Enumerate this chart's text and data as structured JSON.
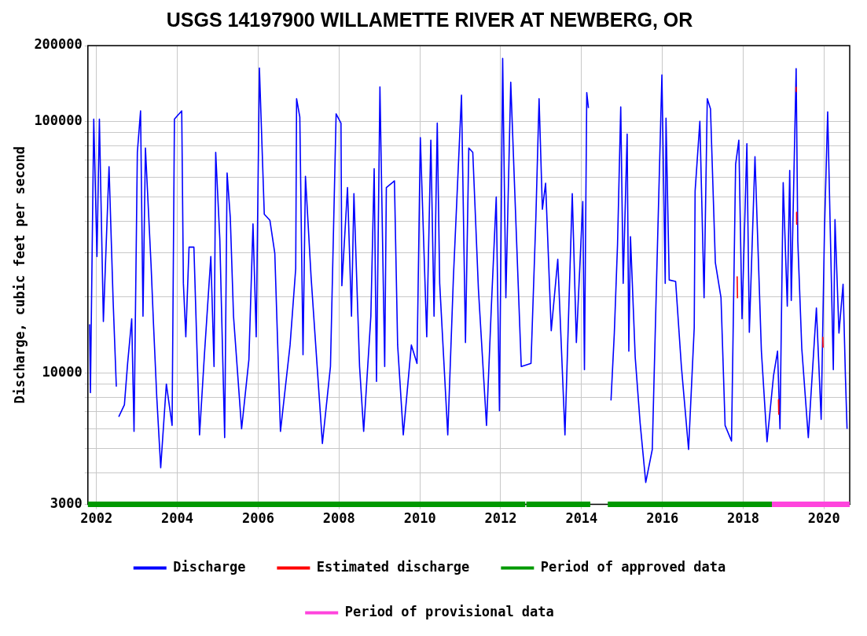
{
  "chart_data": {
    "type": "line",
    "title": "USGS 14197900 WILLAMETTE RIVER AT NEWBERG, OR",
    "ylabel": "Discharge, cubic feet per second",
    "xlim": [
      "2001-10-15",
      "2020-08-20"
    ],
    "xticks": [
      "2002",
      "2004",
      "2006",
      "2008",
      "2010",
      "2012",
      "2014",
      "2016",
      "2018",
      "2020"
    ],
    "ylim": [
      3000,
      200000
    ],
    "yticks": [
      3000,
      {
        "value": 4000,
        "label": null
      },
      {
        "value": 5000,
        "label": null
      },
      {
        "value": 6000,
        "label": null
      },
      {
        "value": 7000,
        "label": null
      },
      {
        "value": 8000,
        "label": null
      },
      {
        "value": 9000,
        "label": null
      },
      10000,
      {
        "value": 20000,
        "label": null
      },
      {
        "value": 30000,
        "label": null
      },
      {
        "value": 40000,
        "label": null
      },
      {
        "value": 50000,
        "label": null
      },
      {
        "value": 60000,
        "label": null
      },
      {
        "value": 70000,
        "label": null
      },
      {
        "value": 80000,
        "label": null
      },
      {
        "value": 90000,
        "label": null
      },
      100000,
      200000
    ],
    "log": "y",
    "grid": true,
    "legend": "bottom",
    "series": [
      {
        "name": "Discharge",
        "color": "#0000ff",
        "x": [
          "2001-10-31",
          "2001-11-07",
          "2001-12-07",
          "2002-01-05",
          "2002-01-27",
          "2002-03-04",
          "2002-04-24",
          "2002-05-31",
          "2002-06-29",
          "2002-07-15",
          "2002-07-21",
          "2002-09-10",
          "2002-10-09",
          "2002-11-15",
          "2002-12-06",
          "2003-01-05",
          "2003-02-03",
          "2003-02-25",
          "2003-03-19",
          "2003-05-09",
          "2003-05-31",
          "2003-06-29",
          "2003-08-04",
          "2003-09-24",
          "2003-11-15",
          "2003-12-06",
          "2004-02-10",
          "2004-02-25",
          "2004-03-18",
          "2004-04-16",
          "2004-05-30",
          "2004-07-20",
          "2004-09-02",
          "2004-10-30",
          "2004-11-28",
          "2004-12-13",
          "2005-01-19",
          "2005-03-04",
          "2005-03-26",
          "2005-04-24",
          "2005-05-23",
          "2005-08-04",
          "2005-10-09",
          "2005-11-15",
          "2005-12-14",
          "2006-01-12",
          "2006-02-25",
          "2006-04-17",
          "2006-05-31",
          "2006-07-21",
          "2006-10-16",
          "2006-12-06",
          "2006-12-14",
          "2007-01-12",
          "2007-02-10",
          "2007-03-04",
          "2007-04-24",
          "2007-08-04",
          "2007-10-16",
          "2007-12-06",
          "2008-01-19",
          "2008-01-27",
          "2008-03-18",
          "2008-04-23",
          "2008-05-15",
          "2008-07-05",
          "2008-08-11",
          "2008-10-15",
          "2008-11-14",
          "2008-12-05",
          "2009-01-05",
          "2009-02-17",
          "2009-03-04",
          "2009-05-16",
          "2009-06-14",
          "2009-08-04",
          "2009-10-16",
          "2009-12-06",
          "2010-01-05",
          "2010-03-04",
          "2010-04-10",
          "2010-05-09",
          "2010-06-07",
          "2010-06-29",
          "2010-09-10",
          "2010-10-31",
          "2011-01-12",
          "2011-02-17",
          "2011-03-19",
          "2011-04-24",
          "2011-06-14",
          "2011-08-26",
          "2011-10-09",
          "2011-11-22",
          "2011-12-21",
          "2012-01-19",
          "2012-02-17",
          "2012-04-01",
          "2012-05-08",
          "2012-07-05",
          "2012-10-01",
          "2012-11-14",
          "2012-12-13",
          "2013-01-12",
          "2013-02-10",
          "2013-04-02",
          "2013-05-31",
          "2013-08-04",
          "2013-10-09",
          "2013-11-15",
          "2014-01-12",
          "2014-01-27",
          "2014-02-17",
          "2014-03-04",
          "2014-06-15",
          "2014-09-24",
          "2014-10-24",
          "2014-11-22",
          "2014-12-21",
          "2015-01-12",
          "2015-02-17",
          "2015-03-04",
          "2015-03-19",
          "2015-05-01",
          "2015-06-14",
          "2015-08-04",
          "2015-10-02",
          "2015-11-07",
          "2015-12-28",
          "2016-01-27",
          "2016-02-03",
          "2016-03-03",
          "2016-04-30",
          "2016-06-21",
          "2016-08-25",
          "2016-10-15",
          "2016-10-23",
          "2016-12-05",
          "2017-01-12",
          "2017-02-10",
          "2017-03-11",
          "2017-04-24",
          "2017-06-14",
          "2017-07-21",
          "2017-09-17",
          "2017-10-24",
          "2017-11-22",
          "2017-12-21",
          "2018-02-03",
          "2018-02-25",
          "2018-04-17",
          "2018-06-14",
          "2018-08-04",
          "2018-10-02",
          "2018-11-07",
          "2018-11-29",
          "2018-12-28",
          "2019-02-03",
          "2019-02-25",
          "2019-03-11",
          "2019-04-24",
          "2019-05-09",
          "2019-06-14",
          "2019-08-12",
          "2019-10-24",
          "2019-12-06",
          "2020-01-05",
          "2020-02-03",
          "2020-03-25",
          "2020-04-09",
          "2020-05-15",
          "2020-06-21",
          "2020-07-12",
          "2020-07-27"
        ],
        "values": [
          15600,
          8340,
          102000,
          29000,
          102000,
          16000,
          66000,
          19400,
          8820,
          null,
          6690,
          7470,
          10900,
          16400,
          5850,
          75300,
          110000,
          16800,
          78300,
          26800,
          15600,
          8080,
          4200,
          9030,
          6180,
          102000,
          110000,
          22700,
          13900,
          31600,
          31600,
          5670,
          11800,
          29000,
          10600,
          75300,
          34200,
          5530,
          62300,
          41300,
          16800,
          5990,
          11300,
          39100,
          13900,
          163000,
          42700,
          40400,
          29900,
          5850,
          12900,
          26000,
          123000,
          104000,
          11800,
          60400,
          24000,
          5240,
          10600,
          107000,
          98400,
          22200,
          54500,
          16800,
          51600,
          10600,
          5850,
          16800,
          64800,
          9240,
          137000,
          10600,
          54500,
          58000,
          12900,
          5670,
          12900,
          10900,
          86100,
          13900,
          84100,
          16800,
          98400,
          22700,
          5670,
          24000,
          127000,
          13200,
          78300,
          75300,
          21500,
          6180,
          18400,
          50000,
          7070,
          178000,
          19900,
          143000,
          51600,
          10600,
          10900,
          41300,
          123000,
          44700,
          56700,
          14700,
          28300,
          5670,
          51600,
          13200,
          48000,
          10300,
          130000,
          113000,
          null,
          7770,
          14400,
          32400,
          114000,
          22700,
          88900,
          12200,
          34800,
          11500,
          6330,
          3670,
          4960,
          21000,
          153000,
          22700,
          103000,
          23400,
          23100,
          10600,
          4960,
          15100,
          52800,
          100000,
          19900,
          123000,
          112000,
          27400,
          19900,
          6180,
          5360,
          67400,
          84100,
          16400,
          81500,
          14500,
          72400,
          12200,
          5320,
          9770,
          12200,
          5990,
          57100,
          18400,
          63800,
          19400,
          162000,
          33400,
          12500,
          5530,
          18100,
          6530,
          37000,
          109000,
          10300,
          40700,
          14400,
          22500,
          9770,
          5990
        ]
      },
      {
        "name": "Estimated discharge",
        "color": "#ff0000",
        "x": [
          "2017-11-07",
          "2017-11-10",
          "2017-11-20",
          "2018-11-15",
          "2018-11-18",
          "2018-12-01",
          "2019-04-23",
          "2019-04-24",
          "2019-04-26",
          "2019-04-28",
          "2019-04-29",
          "2019-12-01",
          "2019-12-21",
          "2019-12-23"
        ],
        "values": [
          24200,
          19800,
          null,
          7830,
          6850,
          null,
          131000,
          137000,
          null,
          43500,
          39000,
          null,
          13900,
          12600
        ]
      },
      {
        "name": "Period of approved data",
        "color": "#009900",
        "x": [
          "2001-10-15",
          "2012-08-10",
          "2012-08-15",
          "2012-08-20",
          "2014-03-21",
          "2014-06-01",
          "2014-08-26",
          "2018-09-17"
        ],
        "values": [
          3000,
          3000,
          null,
          3000,
          3000,
          null,
          3000,
          3000
        ]
      },
      {
        "name": "Period of provisional data",
        "color": "#ff44dd",
        "x": [
          "2018-09-17",
          "2020-08-20"
        ],
        "values": [
          3000,
          3000
        ]
      }
    ]
  }
}
